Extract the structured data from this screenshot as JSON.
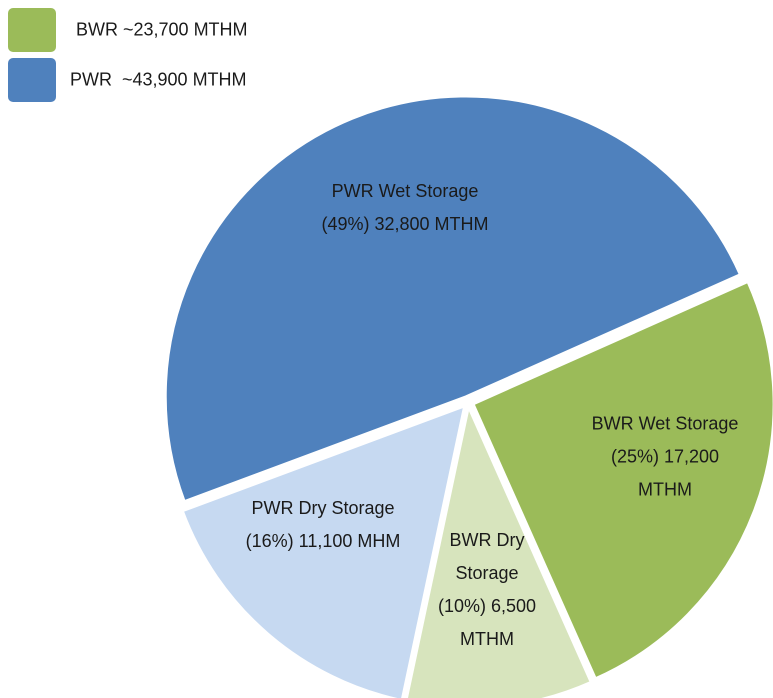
{
  "chart_data": {
    "type": "pie",
    "categories": [
      "PWR Wet Storage (49%) 32,800 MTHM",
      "BWR Wet Storage (25%) 17,200 MTHM",
      "BWR Dry Storage (10%) 6,500 MTHM",
      "PWR Dry Storage (16%) 11,100 MHM"
    ],
    "values": [
      49,
      25,
      10,
      16
    ],
    "colors": [
      "#4f81bd",
      "#9bbb59",
      "#d7e4bd",
      "#c6d9f1"
    ],
    "legend": [
      {
        "label": "BWR ~23,700 MTHM",
        "color": "#9bbb59"
      },
      {
        "label": "PWR  ~43,900 MTHM",
        "color": "#4f81bd"
      }
    ]
  }
}
